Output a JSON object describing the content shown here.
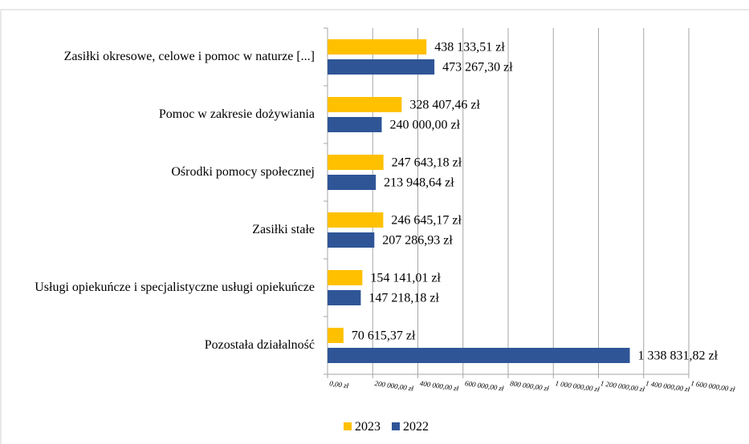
{
  "chart_data": {
    "type": "bar",
    "orientation": "horizontal",
    "categories": [
      "Zasiłki okresowe, celowe i pomoc w naturze [...]",
      "Pomoc w zakresie dożywiania",
      "Ośrodki pomocy społecznej",
      "Zasiłki stałe",
      "Usługi opiekuńcze i specjalistyczne usługi opiekuńcze",
      "Pozostała działalność"
    ],
    "series": [
      {
        "name": "2023",
        "color": "#ffc000",
        "values": [
          438133.51,
          328407.46,
          247643.18,
          246645.17,
          154141.01,
          70615.37
        ],
        "value_labels": [
          "438 133,51 zł",
          "328 407,46 zł",
          "247 643,18 zł",
          "246 645,17 zł",
          "154 141,01 zł",
          "70 615,37 zł"
        ]
      },
      {
        "name": "2022",
        "color": "#2f5597",
        "values": [
          473267.3,
          240000.0,
          213948.64,
          207286.93,
          147218.18,
          1338831.82
        ],
        "value_labels": [
          "473 267,30 zł",
          "240 000,00 zł",
          "213 948,64 zł",
          "207 286,93 zł",
          "147 218,18 zł",
          "1 338 831,82 zł"
        ]
      }
    ],
    "xlim": [
      0,
      1600000
    ],
    "xticks": [
      {
        "value": 0,
        "label": "0,00 zł"
      },
      {
        "value": 200000,
        "label": "200 000,00 zł"
      },
      {
        "value": 400000,
        "label": "400 000,00 zł"
      },
      {
        "value": 600000,
        "label": "600 000,00 zł"
      },
      {
        "value": 800000,
        "label": "800 000,00 zł"
      },
      {
        "value": 1000000,
        "label": "1 000 000,00 zł"
      },
      {
        "value": 1200000,
        "label": "1 200 000,00 zł"
      },
      {
        "value": 1400000,
        "label": "1 400 000,00 zł"
      },
      {
        "value": 1600000,
        "label": "1 600 000,00 zł"
      }
    ],
    "grid": true,
    "legend": "bottom"
  }
}
